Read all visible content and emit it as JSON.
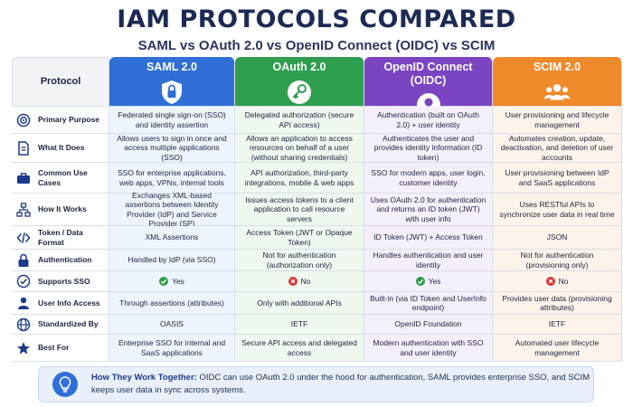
{
  "title": "IAM PROTOCOLS COMPARED",
  "subtitle": "SAML vs OAuth 2.0 vs OpenID Connect (OIDC) vs SCIM",
  "header": {
    "protocol_label": "Protocol",
    "columns": [
      {
        "name": "SAML 2.0",
        "icon": "shield-lock-icon",
        "color": "#2f6fd6"
      },
      {
        "name": "OAuth 2.0",
        "icon": "key-icon",
        "color": "#2f9e4f"
      },
      {
        "name": "OpenID Connect (OIDC)",
        "icon": "user-circle-icon",
        "color": "#7b45c2"
      },
      {
        "name": "SCIM 2.0",
        "icon": "users-group-icon",
        "color": "#ef8a2c"
      }
    ]
  },
  "rows": [
    {
      "label": "Primary Purpose",
      "icon": "target-icon",
      "cells": [
        "Federated single sign-on (SSO) and identity assertion",
        "Delegated authorization (secure API access)",
        "Authentication (built on OAuth 2.0) + user identity",
        "User provisioning and lifecycle management"
      ]
    },
    {
      "label": "What It Does",
      "icon": "document-icon",
      "cells": [
        "Allows users to sign in once and access multiple applications (SSO)",
        "Allows an application to access resources on behalf of a user (without sharing credentials)",
        "Authenticates the user and provides identity information (ID token)",
        "Automates creation, update, deactivation, and deletion of user accounts"
      ]
    },
    {
      "label": "Common Use Cases",
      "icon": "briefcase-icon",
      "cells": [
        "SSO for enterprise applications, web apps, VPNs, internal tools",
        "API authorization, third-party integrations, mobile & web apps",
        "SSO for modern apps, user login, customer identity",
        "User provisioning between IdP and SaaS applications"
      ]
    },
    {
      "label": "How It Works",
      "icon": "flow-icon",
      "cells": [
        "Exchanges XML-based assertions between Identity Provider (IdP) and Service Provider (SP)",
        "Issues access tokens to a client application to call resource servers",
        "Uses OAuth 2.0 for authentication and returns an ID token (JWT) with user info",
        "Uses RESTful APIs to synchronize user data in real time"
      ]
    },
    {
      "label": "Token / Data Format",
      "icon": "code-icon",
      "cells": [
        "XML Assertions",
        "Access Token (JWT or Opaque Token)",
        "ID Token (JWT) + Access Token",
        "JSON"
      ]
    },
    {
      "label": "Authentication",
      "icon": "lock-icon",
      "cells": [
        "Handled by IdP (via SSO)",
        "Not for authentication (authorization only)",
        "Handles authentication and user identity",
        "Not for authentication (provisioning only)"
      ]
    },
    {
      "label": "Supports SSO",
      "icon": "check-circle-icon",
      "cells": [
        "Yes",
        "No",
        "Yes",
        "No"
      ],
      "marks": [
        "yes",
        "no",
        "yes",
        "no"
      ]
    },
    {
      "label": "User Info Access",
      "icon": "user-icon",
      "cells": [
        "Through assertions (attributes)",
        "Only with additional APIs",
        "Built-in (via ID Token and UserInfo endpoint)",
        "Provides user data (provisioning attributes)"
      ]
    },
    {
      "label": "Standardized By",
      "icon": "globe-icon",
      "cells": [
        "OASIS",
        "IETF",
        "OpenID Foundation",
        "IETF"
      ]
    },
    {
      "label": "Best For",
      "icon": "star-icon",
      "cells": [
        "Enterprise SSO for internal and SaaS applications",
        "Secure API access and delegated access",
        "Modern authentication with SSO and user identity",
        "Automated user lifecycle management"
      ]
    }
  ],
  "footer": {
    "heading": "How They Work Together:",
    "text": "OIDC can use OAuth 2.0 under the hood for authentication, SAML provides enterprise SSO, and SCIM keeps user data in sync across systems.",
    "icon": "lightbulb-icon"
  },
  "colors": {
    "title": "#1d2a55",
    "yes": "#2e9b47",
    "no": "#d93838"
  }
}
